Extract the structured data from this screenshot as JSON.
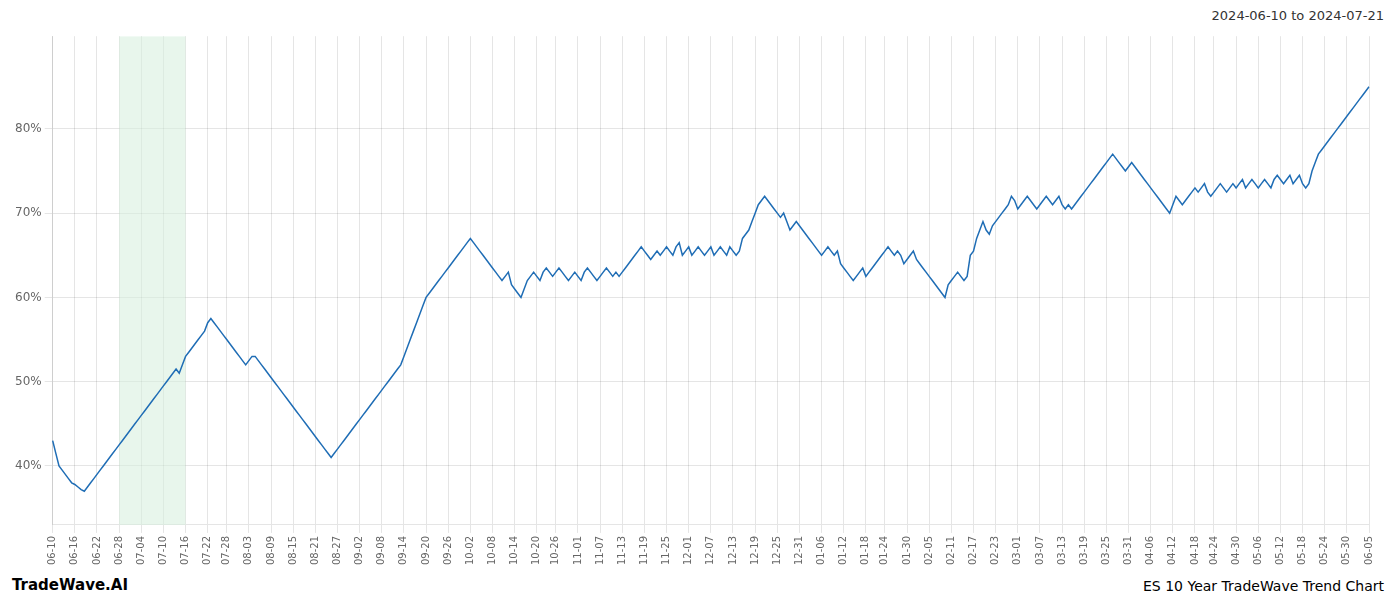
{
  "chart_data": {
    "type": "line",
    "title": "ES 10 Year TradeWave Trend Chart",
    "subtitle": "2024-06-10 to 2024-07-21",
    "annotations": [
      "TradeWave.AI"
    ],
    "color": "#1f6db5",
    "grid": true,
    "ylim": [
      33,
      91
    ],
    "yticks": [
      {
        "value": 40,
        "label": "40%"
      },
      {
        "value": 50,
        "label": "50%"
      },
      {
        "value": 60,
        "label": "60%"
      },
      {
        "value": 70,
        "label": "70%"
      },
      {
        "value": 80,
        "label": "80%"
      }
    ],
    "shade": {
      "start": "06-28",
      "end": "07-16",
      "color": "#d6eedd"
    },
    "categories": [
      "06-10",
      null,
      null,
      null,
      null,
      null,
      null,
      "06-16",
      null,
      null,
      null,
      null,
      null,
      null,
      "06-22",
      null,
      null,
      null,
      null,
      null,
      null,
      "06-28",
      null,
      null,
      null,
      null,
      null,
      null,
      "07-04",
      null,
      null,
      null,
      null,
      null,
      null,
      "07-10",
      null,
      null,
      null,
      null,
      null,
      null,
      "07-16",
      null,
      null,
      null,
      null,
      null,
      null,
      "07-22",
      null,
      null,
      null,
      null,
      null,
      "07-28",
      null,
      null,
      null,
      null,
      null,
      null,
      "08-03",
      null,
      null,
      null,
      null,
      null,
      null,
      "08-09",
      null,
      null,
      null,
      null,
      null,
      null,
      "08-15",
      null,
      null,
      null,
      null,
      null,
      null,
      "08-21",
      null,
      null,
      null,
      null,
      null,
      null,
      "08-27",
      null,
      null,
      null,
      null,
      null,
      null,
      "09-02",
      null,
      null,
      null,
      null,
      null,
      null,
      "09-08",
      null,
      null,
      null,
      null,
      null,
      null,
      "09-14",
      null,
      null,
      null,
      null,
      null,
      null,
      "09-20",
      null,
      null,
      null,
      null,
      null,
      null,
      "09-26",
      null,
      null,
      null,
      null,
      null,
      null,
      "10-02",
      null,
      null,
      null,
      null,
      null,
      null,
      "10-08",
      null,
      null,
      null,
      null,
      null,
      null,
      "10-14",
      null,
      null,
      null,
      null,
      null,
      null,
      "10-20",
      null,
      null,
      null,
      null,
      null,
      "10-26",
      null,
      null,
      null,
      null,
      null,
      null,
      "11-01",
      null,
      null,
      null,
      null,
      null,
      null,
      "11-07",
      null,
      null,
      null,
      null,
      null,
      null,
      "11-13",
      null,
      null,
      null,
      null,
      null,
      null,
      "11-19",
      null,
      null,
      null,
      null,
      null,
      null,
      "11-25",
      null,
      null,
      null,
      null,
      null,
      null,
      "12-01",
      null,
      null,
      null,
      null,
      null,
      null,
      "12-07",
      null,
      null,
      null,
      null,
      null,
      null,
      "12-13",
      null,
      null,
      null,
      null,
      null,
      null,
      "12-19",
      null,
      null,
      null,
      null,
      null,
      null,
      "12-25",
      null,
      null,
      null,
      null,
      null,
      null,
      "12-31",
      null,
      null,
      null,
      null,
      null,
      null,
      "01-06",
      null,
      null,
      null,
      null,
      null,
      null,
      "01-12",
      null,
      null,
      null,
      null,
      null,
      null,
      "01-18",
      null,
      null,
      null,
      null,
      null,
      "01-24",
      null,
      null,
      null,
      null,
      null,
      null,
      "01-30",
      null,
      null,
      null,
      null,
      null,
      null,
      "02-05",
      null,
      null,
      null,
      null,
      null,
      null,
      "02-11",
      null,
      null,
      null,
      null,
      null,
      null,
      "02-17",
      null,
      null,
      null,
      null,
      null,
      null,
      "02-23",
      null,
      null,
      null,
      null,
      null,
      null,
      "03-01",
      null,
      null,
      null,
      null,
      null,
      null,
      "03-07",
      null,
      null,
      null,
      null,
      null,
      null,
      "03-13",
      null,
      null,
      null,
      null,
      null,
      null,
      "03-19",
      null,
      null,
      null,
      null,
      null,
      null,
      "03-25",
      null,
      null,
      null,
      null,
      null,
      null,
      "03-31",
      null,
      null,
      null,
      null,
      null,
      null,
      "04-06",
      null,
      null,
      null,
      null,
      null,
      null,
      "04-12",
      null,
      null,
      null,
      null,
      null,
      null,
      "04-18",
      null,
      null,
      null,
      null,
      null,
      "04-24",
      null,
      null,
      null,
      null,
      null,
      null,
      "04-30",
      null,
      null,
      null,
      null,
      null,
      null,
      "05-06",
      null,
      null,
      null,
      null,
      null,
      null,
      "05-12",
      null,
      null,
      null,
      null,
      null,
      null,
      "05-18",
      null,
      null,
      null,
      null,
      null,
      null,
      "05-24",
      null,
      null,
      null,
      null,
      null,
      null,
      "05-30",
      null,
      null,
      null,
      null,
      null,
      null,
      "06-05"
    ],
    "values": [
      43.0,
      41.5,
      40.0,
      39.5,
      39.0,
      38.5,
      38.0,
      37.8,
      37.5,
      37.2,
      37.0,
      37.5,
      38.0,
      38.5,
      39.0,
      39.5,
      40.0,
      40.5,
      41.0,
      41.5,
      42.0,
      42.5,
      43.0,
      43.5,
      44.0,
      44.5,
      45.0,
      45.5,
      46.0,
      46.5,
      47.0,
      47.5,
      48.0,
      48.5,
      49.0,
      49.5,
      50.0,
      50.5,
      51.0,
      51.5,
      51.0,
      52.0,
      53.0,
      53.5,
      54.0,
      54.5,
      55.0,
      55.5,
      56.0,
      57.0,
      57.5,
      57.0,
      56.5,
      56.0,
      55.5,
      55.0,
      54.5,
      54.0,
      53.5,
      53.0,
      52.5,
      52.0,
      52.5,
      53.0,
      53.0,
      52.5,
      52.0,
      51.5,
      51.0,
      50.5,
      50.0,
      49.5,
      49.0,
      48.5,
      48.0,
      47.5,
      47.0,
      46.5,
      46.0,
      45.5,
      45.0,
      44.5,
      44.0,
      43.5,
      43.0,
      42.5,
      42.0,
      41.5,
      41.0,
      41.5,
      42.0,
      42.5,
      43.0,
      43.5,
      44.0,
      44.5,
      45.0,
      45.5,
      46.0,
      46.5,
      47.0,
      47.5,
      48.0,
      48.5,
      49.0,
      49.5,
      50.0,
      50.5,
      51.0,
      51.5,
      52.0,
      53.0,
      54.0,
      55.0,
      56.0,
      57.0,
      58.0,
      59.0,
      60.0,
      60.5,
      61.0,
      61.5,
      62.0,
      62.5,
      63.0,
      63.5,
      64.0,
      64.5,
      65.0,
      65.5,
      66.0,
      66.5,
      67.0,
      66.5,
      66.0,
      65.5,
      65.0,
      64.5,
      64.0,
      63.5,
      63.0,
      62.5,
      62.0,
      62.5,
      63.0,
      61.5,
      61.0,
      60.5,
      60.0,
      61.0,
      62.0,
      62.5,
      63.0,
      62.5,
      62.0,
      63.0,
      63.5,
      63.0,
      62.5,
      63.0,
      63.5,
      63.0,
      62.5,
      62.0,
      62.5,
      63.0,
      62.5,
      62.0,
      63.0,
      63.5,
      63.0,
      62.5,
      62.0,
      62.5,
      63.0,
      63.5,
      63.0,
      62.5,
      63.0,
      62.5,
      63.0,
      63.5,
      64.0,
      64.5,
      65.0,
      65.5,
      66.0,
      65.5,
      65.0,
      64.5,
      65.0,
      65.5,
      65.0,
      65.5,
      66.0,
      65.5,
      65.0,
      66.0,
      66.5,
      65.0,
      65.5,
      66.0,
      65.0,
      65.5,
      66.0,
      65.5,
      65.0,
      65.5,
      66.0,
      65.0,
      65.5,
      66.0,
      65.5,
      65.0,
      66.0,
      65.5,
      65.0,
      65.5,
      67.0,
      67.5,
      68.0,
      69.0,
      70.0,
      71.0,
      71.5,
      72.0,
      71.5,
      71.0,
      70.5,
      70.0,
      69.5,
      70.0,
      69.0,
      68.0,
      68.5,
      69.0,
      68.5,
      68.0,
      67.5,
      67.0,
      66.5,
      66.0,
      65.5,
      65.0,
      65.5,
      66.0,
      65.5,
      65.0,
      65.5,
      64.0,
      63.5,
      63.0,
      62.5,
      62.0,
      62.5,
      63.0,
      63.5,
      62.5,
      63.0,
      63.5,
      64.0,
      64.5,
      65.0,
      65.5,
      66.0,
      65.5,
      65.0,
      65.5,
      65.0,
      64.0,
      64.5,
      65.0,
      65.5,
      64.5,
      64.0,
      63.5,
      63.0,
      62.5,
      62.0,
      61.5,
      61.0,
      60.5,
      60.0,
      61.5,
      62.0,
      62.5,
      63.0,
      62.5,
      62.0,
      62.5,
      65.0,
      65.5,
      67.0,
      68.0,
      69.0,
      68.0,
      67.5,
      68.5,
      69.0,
      69.5,
      70.0,
      70.5,
      71.0,
      72.0,
      71.5,
      70.5,
      71.0,
      71.5,
      72.0,
      71.5,
      71.0,
      70.5,
      71.0,
      71.5,
      72.0,
      71.5,
      71.0,
      71.5,
      72.0,
      71.0,
      70.5,
      71.0,
      70.5,
      71.0,
      71.5,
      72.0,
      72.5,
      73.0,
      73.5,
      74.0,
      74.5,
      75.0,
      75.5,
      76.0,
      76.5,
      77.0,
      76.5,
      76.0,
      75.5,
      75.0,
      75.5,
      76.0,
      75.5,
      75.0,
      74.5,
      74.0,
      73.5,
      73.0,
      72.5,
      72.0,
      71.5,
      71.0,
      70.5,
      70.0,
      71.0,
      72.0,
      71.5,
      71.0,
      71.5,
      72.0,
      72.5,
      73.0,
      72.5,
      73.0,
      73.5,
      72.5,
      72.0,
      72.5,
      73.0,
      73.5,
      73.0,
      72.5,
      73.0,
      73.5,
      73.0,
      73.5,
      74.0,
      73.0,
      73.5,
      74.0,
      73.5,
      73.0,
      73.5,
      74.0,
      73.5,
      73.0,
      74.0,
      74.5,
      74.0,
      73.5,
      74.0,
      74.5,
      73.5,
      74.0,
      74.5,
      73.5,
      73.0,
      73.5,
      75.0,
      76.0,
      77.0,
      77.5,
      78.0,
      78.5,
      79.0,
      79.5,
      80.0,
      80.5,
      81.0,
      81.5,
      82.0,
      82.5,
      83.0,
      83.5,
      84.0,
      84.5,
      85.0
    ]
  }
}
